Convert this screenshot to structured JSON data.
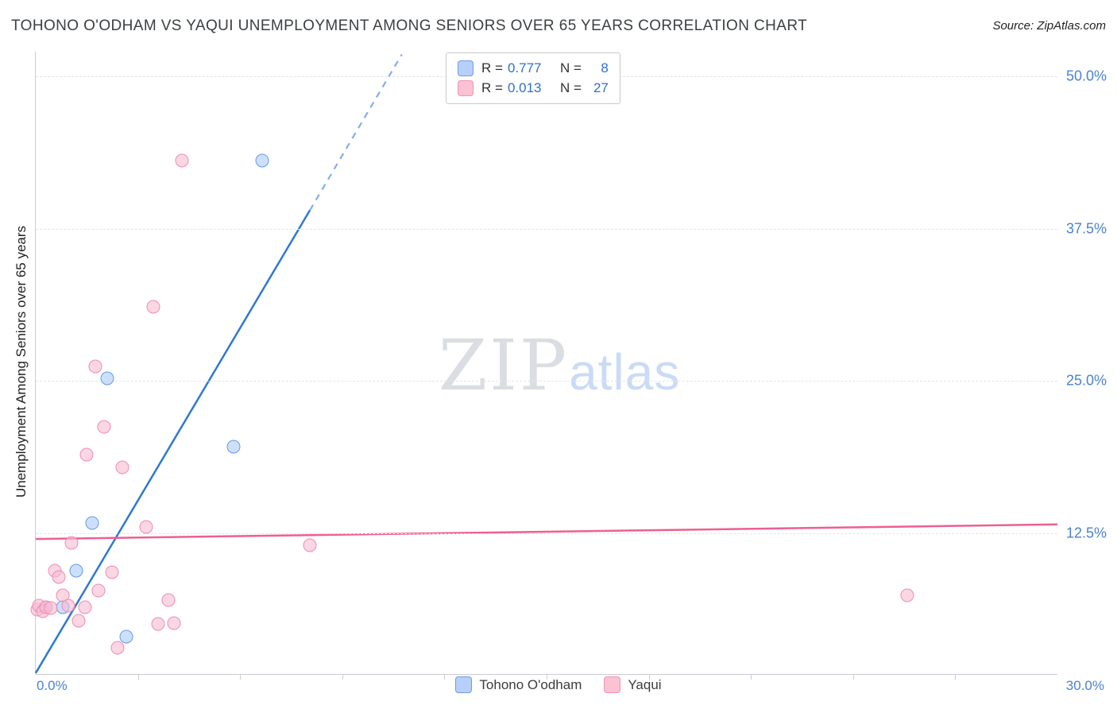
{
  "header": {
    "title": "TOHONO O'ODHAM VS YAQUI UNEMPLOYMENT AMONG SENIORS OVER 65 YEARS CORRELATION CHART",
    "source": "Source: ZipAtlas.com"
  },
  "watermark": {
    "zip": "ZIP",
    "atlas": "atlas"
  },
  "axes": {
    "y_label": "Unemployment Among Seniors over 65 years",
    "x_min_label": "0.0%",
    "x_max_label": "30.0%"
  },
  "stats_box": {
    "rows": [
      {
        "series": "Tohono O'odham",
        "r_label": "R =",
        "r_value": "0.777",
        "n_label": "N =",
        "n_value": "8"
      },
      {
        "series": "Yaqui",
        "r_label": "R =",
        "r_value": "0.013",
        "n_label": "N =",
        "n_value": "27"
      }
    ]
  },
  "series_legend": {
    "items": [
      {
        "label": "Tohono O'odham"
      },
      {
        "label": "Yaqui"
      }
    ]
  },
  "chart_data": {
    "type": "scatter",
    "title": "Tohono O'odham vs Yaqui Unemployment Among Seniors over 65 years",
    "xlabel": "",
    "ylabel": "Unemployment Among Seniors over 65 years",
    "xlim": [
      0,
      30
    ],
    "ylim": [
      0,
      52
    ],
    "x_unit": "%",
    "y_unit": "%",
    "grid": true,
    "legend_position": "bottom",
    "y_grid_values": [
      12.5,
      25,
      37.5,
      50
    ],
    "y_tick_labels": [
      "12.5%",
      "25.0%",
      "37.5%",
      "50.0%"
    ],
    "series": [
      {
        "name": "Tohono O'odham",
        "r": 0.777,
        "n": 8,
        "fill": "rgba(164,199,247,0.55)",
        "edge": "#6399e8",
        "points": [
          [
            0.3,
            6.4
          ],
          [
            0.8,
            6.4
          ],
          [
            1.2,
            9.4
          ],
          [
            1.65,
            13.3
          ],
          [
            2.1,
            25.2
          ],
          [
            2.65,
            4.0
          ],
          [
            5.8,
            19.6
          ],
          [
            6.65,
            43.1
          ]
        ]
      },
      {
        "name": "Yaqui",
        "r": 0.013,
        "n": 27,
        "fill": "rgba(248,187,208,0.6)",
        "edge": "#ef8cb2",
        "points": [
          [
            0.05,
            6.2
          ],
          [
            0.1,
            6.5
          ],
          [
            0.2,
            6.1
          ],
          [
            0.3,
            6.4
          ],
          [
            0.45,
            6.3
          ],
          [
            0.55,
            9.4
          ],
          [
            0.68,
            8.9
          ],
          [
            0.8,
            7.4
          ],
          [
            0.95,
            6.5
          ],
          [
            1.05,
            11.7
          ],
          [
            1.25,
            5.3
          ],
          [
            1.45,
            6.4
          ],
          [
            1.5,
            18.9
          ],
          [
            1.75,
            26.2
          ],
          [
            1.85,
            7.8
          ],
          [
            2.0,
            21.2
          ],
          [
            2.25,
            9.3
          ],
          [
            2.4,
            3.1
          ],
          [
            2.55,
            17.9
          ],
          [
            3.25,
            13.0
          ],
          [
            3.45,
            31.1
          ],
          [
            3.6,
            5.0
          ],
          [
            3.9,
            7.0
          ],
          [
            4.05,
            5.1
          ],
          [
            4.3,
            43.1
          ],
          [
            8.05,
            11.5
          ],
          [
            25.6,
            7.4
          ]
        ]
      }
    ],
    "trend_lines": [
      {
        "series": "Tohono O'odham",
        "color": "#2f78d2",
        "dash_color": "#85aeea",
        "solid": [
          [
            0,
            1.0
          ],
          [
            8.05,
            39.0
          ]
        ],
        "dashed": [
          [
            8.05,
            39.0
          ],
          [
            10.75,
            51.8
          ]
        ]
      },
      {
        "series": "Yaqui",
        "color": "#ed5f94",
        "solid": [
          [
            0,
            12.0
          ],
          [
            30,
            13.2
          ]
        ]
      }
    ]
  }
}
